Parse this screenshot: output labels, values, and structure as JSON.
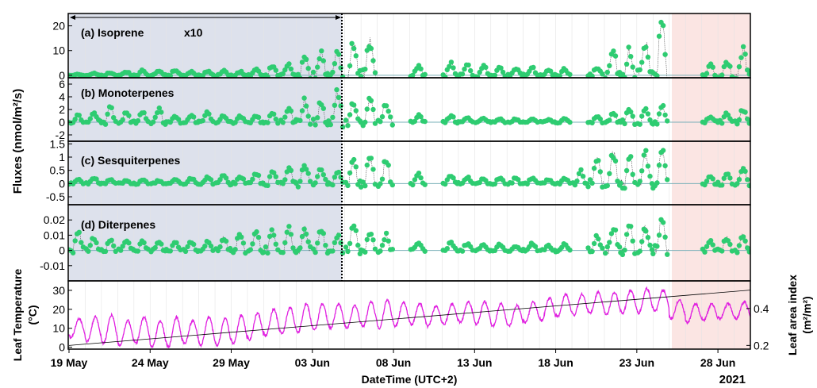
{
  "figure": {
    "year_label": "2021",
    "x_title": "DateTime (UTC+2)",
    "flux_ylabel": "Fluxes (nmol/m²/s)",
    "temp_ylabel_line1": "Leaf Temperature",
    "temp_ylabel_line2": "(°C)",
    "lai_ylabel_line1": "Leaf area index",
    "lai_ylabel_line2": "(m²/m²)",
    "x_ticks": [
      "19 May",
      "24 May",
      "29 May",
      "03 Jun",
      "08 Jun",
      "13 Jun",
      "18 Jun",
      "23 Jun",
      "28 Jun"
    ],
    "colors": {
      "flux_points": "#2ecc71",
      "flux_line": "#555555",
      "temperature": "#e020e0",
      "lai_line": "#000000",
      "left_shade": "#dde1ec",
      "right_shade": "#fbe5e3",
      "zero_line": "#7ab0b8"
    }
  },
  "chart_data": [
    {
      "type": "scatter",
      "title": "(a) Isoprene",
      "annotation": "x10",
      "x_range": [
        "2021-05-19",
        "2021-06-30"
      ],
      "ylim": [
        -1,
        25
      ],
      "yticks": [
        "20",
        "10",
        "0"
      ],
      "ytick_values": [
        20,
        10,
        0
      ],
      "daily_peaks": [
        0.5,
        0.8,
        1,
        1.5,
        2,
        1.5,
        2,
        1.5,
        1.5,
        2,
        1.5,
        3,
        4,
        4.5,
        8,
        9,
        10,
        13,
        14,
        0,
        0,
        4,
        0,
        5,
        4,
        4,
        3,
        3,
        3,
        2,
        2.5,
        0,
        3,
        9,
        10,
        13,
        20,
        0,
        0,
        4,
        6,
        10,
        9,
        10,
        9
      ]
    },
    {
      "type": "scatter",
      "title": "(b) Monoterpenes",
      "x_range": [
        "2021-05-19",
        "2021-06-30"
      ],
      "ylim": [
        -3,
        7
      ],
      "yticks": [
        "6",
        "4",
        "2",
        "0",
        "-2"
      ],
      "ytick_values": [
        6,
        4,
        2,
        0,
        -2
      ],
      "daily_peaks": [
        1,
        1.5,
        2.5,
        1.5,
        1.5,
        2,
        1,
        1,
        1.5,
        1,
        1,
        1,
        1.5,
        2.5,
        3.5,
        3,
        4.5,
        3,
        3.5,
        3,
        0,
        1,
        0,
        1,
        0.8,
        0.6,
        0.5,
        0.5,
        0.5,
        0.4,
        0.5,
        0,
        0.8,
        1.5,
        2,
        2,
        2.5,
        0,
        0,
        1,
        1.5,
        2,
        2,
        2,
        1.5
      ]
    },
    {
      "type": "scatter",
      "title": "(c) Sesquiterpenes",
      "x_range": [
        "2021-05-19",
        "2021-06-30"
      ],
      "ylim": [
        -0.8,
        1.6
      ],
      "yticks": [
        "1.5",
        "1",
        "0.5",
        "0",
        "-0.5"
      ],
      "ytick_values": [
        1.5,
        1,
        0.5,
        0,
        -0.5
      ],
      "daily_peaks": [
        0.15,
        0.2,
        0.15,
        0.1,
        0.15,
        0.1,
        0.15,
        0.2,
        0.25,
        0.3,
        0.3,
        0.35,
        0.5,
        0.6,
        0.7,
        0.55,
        0.5,
        0.8,
        0.95,
        0.8,
        0,
        0.35,
        0,
        0.3,
        0.25,
        0.2,
        0.2,
        0.2,
        0.2,
        0.15,
        0.2,
        0.45,
        0.9,
        1.1,
        1.0,
        1.1,
        1.2,
        0,
        0,
        0.3,
        0.4,
        0.6,
        0.5,
        0.5,
        0.4
      ]
    },
    {
      "type": "scatter",
      "title": "(d) Diterpenes",
      "x_range": [
        "2021-05-19",
        "2021-06-30"
      ],
      "ylim": [
        -0.02,
        0.03
      ],
      "yticks": [
        "0.02",
        "0.01",
        "0",
        "-0.01"
      ],
      "ytick_values": [
        0.02,
        0.01,
        0,
        -0.01
      ],
      "daily_peaks": [
        0.012,
        0.008,
        0.007,
        0.006,
        0.006,
        0.006,
        0.005,
        0.005,
        0.006,
        0.008,
        0.01,
        0.012,
        0.013,
        0.014,
        0.014,
        0.013,
        0.01,
        0.015,
        0.012,
        0.01,
        0,
        0.005,
        0,
        0.005,
        0.004,
        0.004,
        0.004,
        0.003,
        0.004,
        0.003,
        0.004,
        0,
        0.01,
        0.015,
        0.016,
        0.015,
        0.019,
        0,
        0,
        0.006,
        0.008,
        0.01,
        0.012,
        0.01,
        0.009
      ]
    },
    {
      "type": "line",
      "title": "",
      "ylabel": "Leaf Temperature (°C)",
      "y2label": "Leaf area index (m²/m²)",
      "ylim": [
        -1,
        35
      ],
      "yticks": [
        "30",
        "20",
        "10",
        "0"
      ],
      "ytick_values": [
        30,
        20,
        10,
        0
      ],
      "y2lim": [
        0.18,
        0.55
      ],
      "y2ticks": [
        "0.4",
        "0.2"
      ],
      "y2tick_values": [
        0.4,
        0.2
      ],
      "x_range": [
        "2021-05-19",
        "2021-06-30"
      ],
      "temperature_daily": [
        [
          5,
          15
        ],
        [
          3,
          16
        ],
        [
          2,
          17
        ],
        [
          1,
          14
        ],
        [
          2,
          16
        ],
        [
          0,
          14
        ],
        [
          0,
          16
        ],
        [
          2,
          14
        ],
        [
          1,
          16
        ],
        [
          1,
          15
        ],
        [
          2,
          17
        ],
        [
          4,
          18
        ],
        [
          6,
          20
        ],
        [
          7,
          21
        ],
        [
          8,
          23
        ],
        [
          9,
          23
        ],
        [
          10,
          23
        ],
        [
          10,
          22
        ],
        [
          11,
          24
        ],
        [
          10,
          25
        ],
        [
          11,
          24
        ],
        [
          12,
          23
        ],
        [
          11,
          22
        ],
        [
          12,
          23
        ],
        [
          13,
          24
        ],
        [
          12,
          24
        ],
        [
          11,
          23
        ],
        [
          11,
          22
        ],
        [
          13,
          24
        ],
        [
          14,
          26
        ],
        [
          16,
          28
        ],
        [
          17,
          28
        ],
        [
          18,
          29
        ],
        [
          17,
          29
        ],
        [
          18,
          30
        ],
        [
          18,
          31
        ],
        [
          19,
          30
        ],
        [
          15,
          25
        ],
        [
          13,
          23
        ],
        [
          14,
          23
        ],
        [
          15,
          23
        ],
        [
          15,
          24
        ],
        [
          16,
          24
        ],
        [
          16,
          24
        ],
        [
          17,
          24
        ]
      ],
      "lai_line": {
        "start": 0.2,
        "end": 0.5
      }
    }
  ]
}
